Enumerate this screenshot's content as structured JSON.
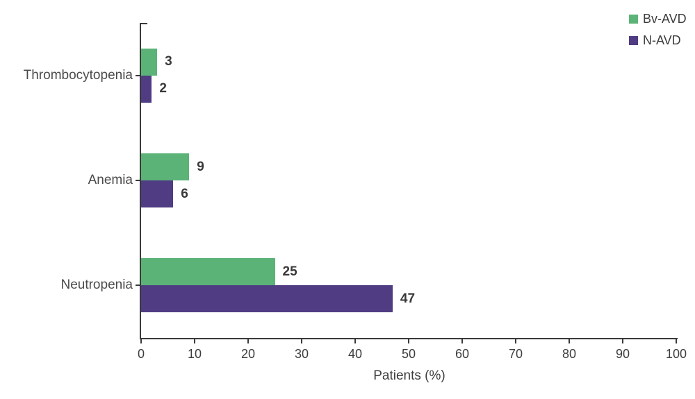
{
  "chart_data": {
    "type": "bar",
    "orientation": "horizontal",
    "title": "",
    "xlabel": "Patients (%)",
    "ylabel": "",
    "categories": [
      "Thrombocytopenia",
      "Anemia",
      "Neutropenia"
    ],
    "series": [
      {
        "name": "Bv-AVD",
        "color": "#5bb377",
        "values": [
          3,
          9,
          25
        ]
      },
      {
        "name": "N-AVD",
        "color": "#503c83",
        "values": [
          2,
          6,
          47
        ]
      }
    ],
    "xlim": [
      0,
      100
    ],
    "x_ticks": [
      0,
      10,
      20,
      30,
      40,
      50,
      60,
      70,
      80,
      90,
      100
    ],
    "grid": false,
    "legend_position": "top-right",
    "value_labels_shown": true
  },
  "colors": {
    "axis": "#3a3a3a",
    "category_label": "#4a4a4a",
    "value_label": "#383838",
    "tick_label": "#3d3d3d",
    "background": "#ffffff"
  }
}
